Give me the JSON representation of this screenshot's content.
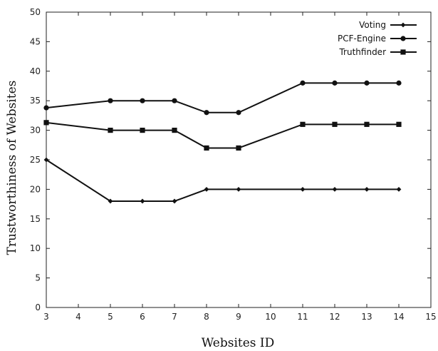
{
  "chart_data": {
    "type": "line",
    "title": "",
    "xlabel": "Websites ID",
    "ylabel": "Trustworthiness of Websites",
    "xlim": [
      3,
      15
    ],
    "ylim": [
      0,
      50
    ],
    "x_ticks": [
      "3",
      "4",
      "5",
      "6",
      "7",
      "8",
      "9",
      "10",
      "11",
      "12",
      "13",
      "14",
      "15"
    ],
    "y_ticks": [
      "0",
      "5",
      "10",
      "15",
      "20",
      "25",
      "30",
      "35",
      "40",
      "45",
      "50"
    ],
    "grid": false,
    "legend_position": "top-right",
    "series": [
      {
        "name": "Voting",
        "marker": "diamond",
        "color": "#111111",
        "x": [
          3,
          5,
          6,
          7,
          8,
          9,
          11,
          12,
          13,
          14
        ],
        "y": [
          25,
          18,
          18,
          18,
          20,
          20,
          20,
          20,
          20,
          20
        ]
      },
      {
        "name": "PCF-Engine",
        "marker": "circle",
        "color": "#111111",
        "x": [
          3,
          5,
          6,
          7,
          8,
          9,
          11,
          12,
          13,
          14
        ],
        "y": [
          33.8,
          35,
          35,
          35,
          33,
          33,
          38,
          38,
          38,
          38
        ]
      },
      {
        "name": "Truthfinder",
        "marker": "square",
        "color": "#111111",
        "x": [
          3,
          5,
          6,
          7,
          8,
          9,
          11,
          12,
          13,
          14
        ],
        "y": [
          31.3,
          30,
          30,
          30,
          27,
          27,
          31,
          31,
          31,
          31
        ]
      }
    ]
  }
}
